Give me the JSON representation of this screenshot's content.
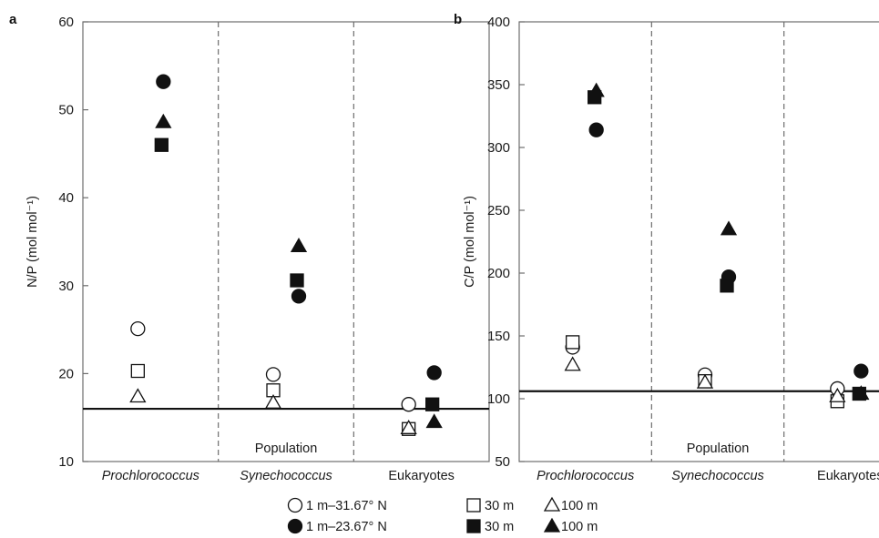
{
  "chart_data": [
    {
      "type": "scatter",
      "panel_label": "a",
      "ylabel": "N/P (mol mol⁻¹)",
      "ylim": [
        10,
        60
      ],
      "yticks": [
        10,
        20,
        30,
        40,
        50,
        60
      ],
      "categories": [
        "Prochlorococcus",
        "Synechococcus",
        "Eukaryotes"
      ],
      "xlabel": "Population",
      "reference_line": 16,
      "series": [
        {
          "marker": "circle-open",
          "values": [
            25.1,
            19.9,
            16.5
          ]
        },
        {
          "marker": "square-open",
          "values": [
            20.3,
            18.1,
            13.7
          ]
        },
        {
          "marker": "triangle-open",
          "values": [
            17.4,
            16.7,
            13.8
          ]
        },
        {
          "marker": "circle-filled",
          "values": [
            53.2,
            28.8,
            20.1
          ]
        },
        {
          "marker": "square-filled",
          "values": [
            46.0,
            30.6,
            16.5
          ]
        },
        {
          "marker": "triangle-filled",
          "values": [
            48.6,
            34.5,
            14.5
          ]
        }
      ]
    },
    {
      "type": "scatter",
      "panel_label": "b",
      "ylabel": "C/P (mol mol⁻¹)",
      "ylim": [
        50,
        400
      ],
      "yticks": [
        50,
        100,
        150,
        200,
        250,
        300,
        350,
        400
      ],
      "categories": [
        "Prochlorococcus",
        "Synechococcus",
        "Eukaryotes"
      ],
      "xlabel": "Population",
      "reference_line": 106,
      "series": [
        {
          "marker": "circle-open",
          "values": [
            141,
            119,
            108
          ]
        },
        {
          "marker": "square-open",
          "values": [
            145,
            114,
            98
          ]
        },
        {
          "marker": "triangle-open",
          "values": [
            127,
            113,
            102
          ]
        },
        {
          "marker": "circle-filled",
          "values": [
            314,
            197,
            122
          ]
        },
        {
          "marker": "square-filled",
          "values": [
            340,
            190,
            104
          ]
        },
        {
          "marker": "triangle-filled",
          "values": [
            345,
            235,
            104
          ]
        }
      ]
    }
  ],
  "legend": {
    "items": [
      {
        "marker": "circle-open",
        "label": "1 m–31.67° N"
      },
      {
        "marker": "square-open",
        "label": "30 m"
      },
      {
        "marker": "triangle-open",
        "label": "100 m"
      },
      {
        "marker": "circle-filled",
        "label": "1 m–23.67° N"
      },
      {
        "marker": "square-filled",
        "label": "30 m"
      },
      {
        "marker": "triangle-filled",
        "label": "100 m"
      }
    ]
  }
}
